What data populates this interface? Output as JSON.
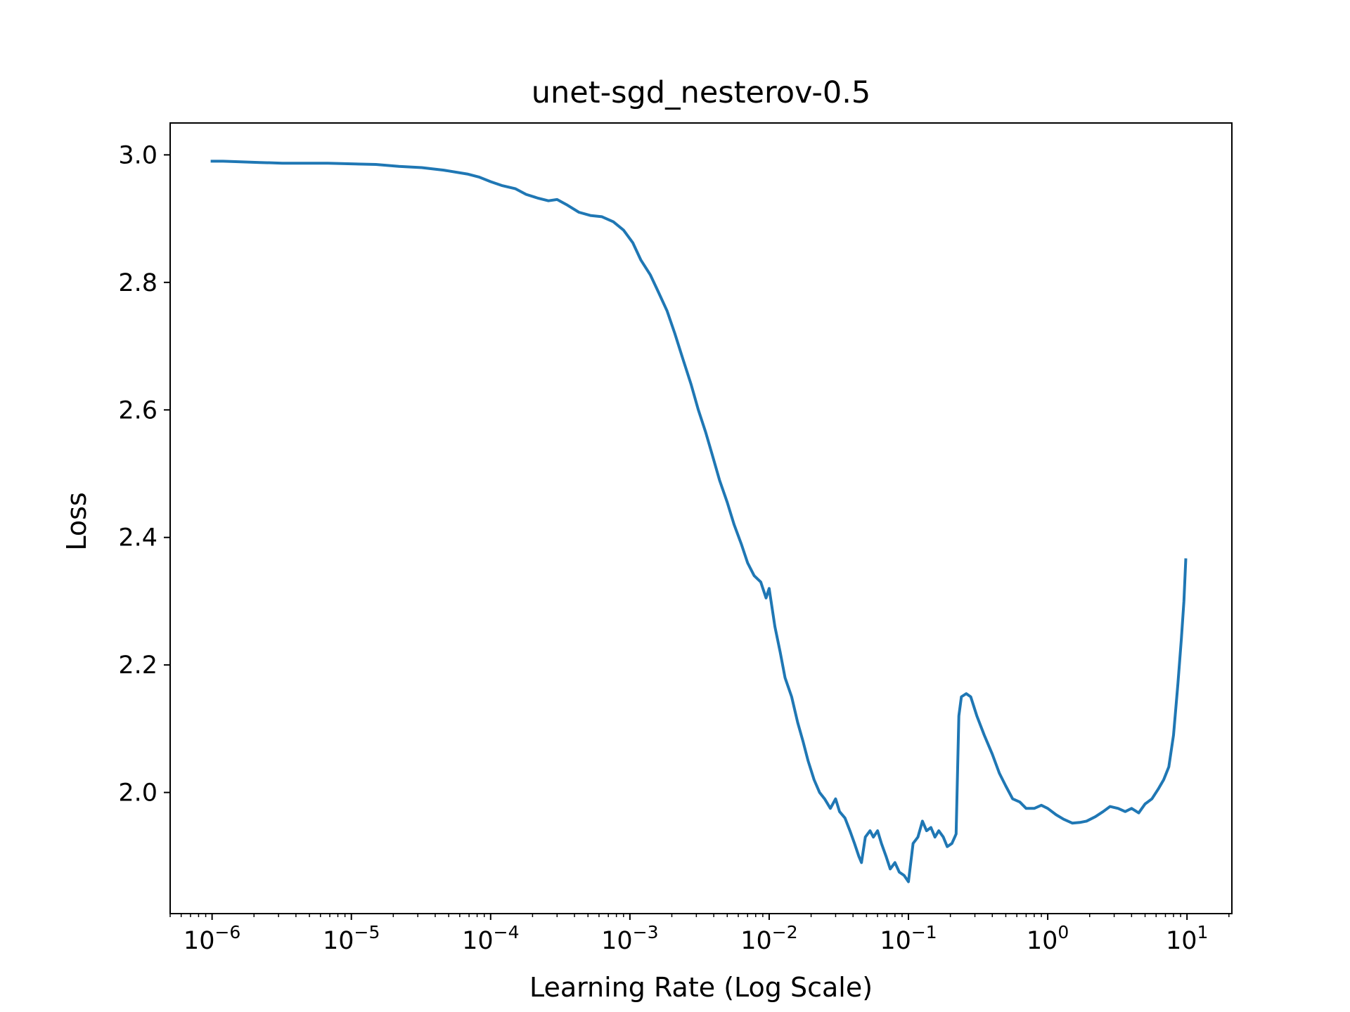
{
  "chart_data": {
    "type": "line",
    "title": "unet-sgd_nesterov-0.5",
    "xlabel": "Learning Rate (Log Scale)",
    "ylabel": "Loss",
    "xscale": "log",
    "xlim": [
      5e-07,
      21
    ],
    "ylim": [
      1.81,
      3.05
    ],
    "x_major_ticks": [
      {
        "value": 1e-06,
        "base": "10",
        "exp": "−6"
      },
      {
        "value": 1e-05,
        "base": "10",
        "exp": "−5"
      },
      {
        "value": 0.0001,
        "base": "10",
        "exp": "−4"
      },
      {
        "value": 0.001,
        "base": "10",
        "exp": "−3"
      },
      {
        "value": 0.01,
        "base": "10",
        "exp": "−2"
      },
      {
        "value": 0.1,
        "base": "10",
        "exp": "−1"
      },
      {
        "value": 1,
        "base": "10",
        "exp": "0"
      },
      {
        "value": 10,
        "base": "10",
        "exp": "1"
      }
    ],
    "y_ticks": [
      {
        "value": 2.0,
        "label": "2.0"
      },
      {
        "value": 2.2,
        "label": "2.2"
      },
      {
        "value": 2.4,
        "label": "2.4"
      },
      {
        "value": 2.6,
        "label": "2.6"
      },
      {
        "value": 2.8,
        "label": "2.8"
      },
      {
        "value": 3.0,
        "label": "3.0"
      }
    ],
    "grid": false,
    "series": [
      {
        "color": "#1f77b4",
        "x": [
          1e-06,
          1.2e-06,
          1.6e-06,
          2.2e-06,
          3.2e-06,
          4.6e-06,
          6.8e-06,
          1e-05,
          1.5e-05,
          2.2e-05,
          3.2e-05,
          4.6e-05,
          6.8e-05,
          8.3e-05,
          0.0001,
          0.00012,
          0.00015,
          0.00018,
          0.00022,
          0.00026,
          0.0003,
          0.00035,
          0.00043,
          0.00052,
          0.00063,
          0.00076,
          0.0009,
          0.00105,
          0.0012,
          0.0014,
          0.0016,
          0.00185,
          0.0021,
          0.0024,
          0.00275,
          0.0031,
          0.0035,
          0.0039,
          0.0044,
          0.005,
          0.0056,
          0.0063,
          0.007,
          0.0078,
          0.0087,
          0.0095,
          0.01,
          0.011,
          0.012,
          0.013,
          0.0145,
          0.016,
          0.0175,
          0.019,
          0.021,
          0.023,
          0.025,
          0.0275,
          0.03,
          0.032,
          0.035,
          0.038,
          0.041,
          0.044,
          0.046,
          0.049,
          0.053,
          0.056,
          0.06,
          0.064,
          0.069,
          0.074,
          0.08,
          0.086,
          0.093,
          0.1,
          0.108,
          0.117,
          0.126,
          0.135,
          0.145,
          0.155,
          0.165,
          0.178,
          0.19,
          0.205,
          0.215,
          0.22,
          0.23,
          0.24,
          0.26,
          0.28,
          0.31,
          0.35,
          0.4,
          0.45,
          0.5,
          0.56,
          0.63,
          0.7,
          0.8,
          0.9,
          1.0,
          1.15,
          1.3,
          1.5,
          1.7,
          1.9,
          2.2,
          2.5,
          2.8,
          3.2,
          3.6,
          4.0,
          4.5,
          5.0,
          5.6,
          6.2,
          6.8,
          7.4,
          8.0,
          8.6,
          9.1,
          9.5,
          9.8
        ],
        "y": [
          2.99,
          2.99,
          2.989,
          2.988,
          2.987,
          2.987,
          2.987,
          2.986,
          2.985,
          2.982,
          2.98,
          2.976,
          2.97,
          2.965,
          2.958,
          2.952,
          2.947,
          2.938,
          2.932,
          2.928,
          2.93,
          2.922,
          2.91,
          2.905,
          2.903,
          2.895,
          2.882,
          2.862,
          2.835,
          2.812,
          2.785,
          2.755,
          2.72,
          2.68,
          2.64,
          2.6,
          2.565,
          2.53,
          2.49,
          2.455,
          2.42,
          2.39,
          2.36,
          2.34,
          2.33,
          2.305,
          2.32,
          2.26,
          2.22,
          2.18,
          2.15,
          2.11,
          2.08,
          2.05,
          2.02,
          2.0,
          1.99,
          1.975,
          1.99,
          1.97,
          1.96,
          1.94,
          1.92,
          1.9,
          1.89,
          1.93,
          1.94,
          1.93,
          1.94,
          1.92,
          1.9,
          1.88,
          1.89,
          1.875,
          1.87,
          1.86,
          1.92,
          1.93,
          1.955,
          1.94,
          1.945,
          1.93,
          1.94,
          1.93,
          1.915,
          1.92,
          1.93,
          1.935,
          2.12,
          2.15,
          2.155,
          2.15,
          2.12,
          2.09,
          2.06,
          2.03,
          2.01,
          1.99,
          1.985,
          1.975,
          1.975,
          1.98,
          1.975,
          1.965,
          1.958,
          1.952,
          1.953,
          1.955,
          1.962,
          1.97,
          1.978,
          1.975,
          1.97,
          1.975,
          1.968,
          1.982,
          1.99,
          2.005,
          2.02,
          2.04,
          2.09,
          2.17,
          2.24,
          2.3,
          2.365
        ]
      }
    ]
  }
}
